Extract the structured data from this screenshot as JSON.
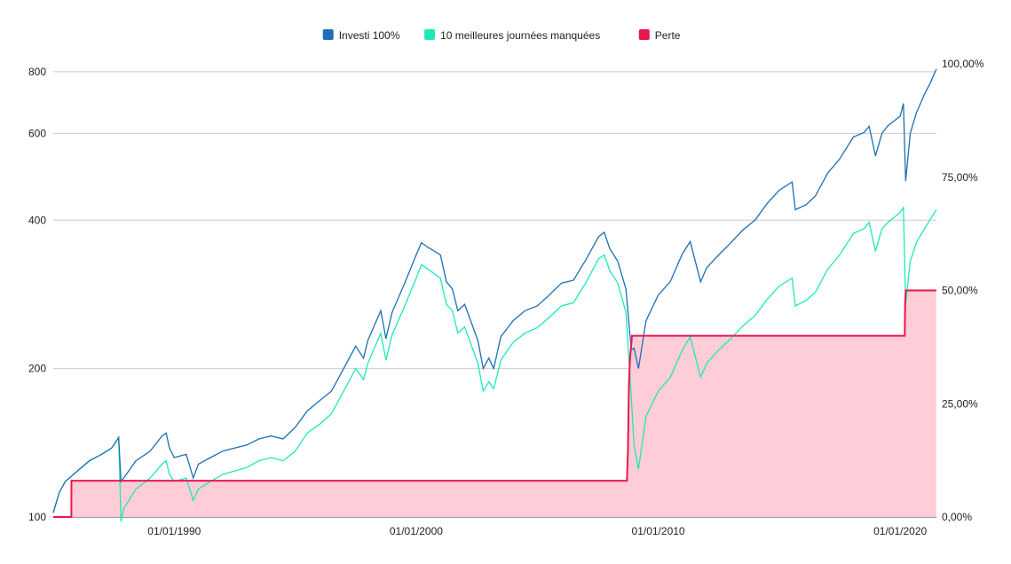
{
  "chart_data": {
    "type": "line",
    "legend": {
      "position": "top-center",
      "entries": [
        {
          "name": "Investi 100%",
          "color": "#1b6fb5"
        },
        {
          "name": "10 meilleures journées manquées",
          "color": "#1de9b6"
        },
        {
          "name": "Perte",
          "color": "#e8174f"
        }
      ]
    },
    "x_axis": {
      "type": "date",
      "range": [
        "1985-01-01",
        "2021-07-01"
      ],
      "ticks": [
        {
          "value": "1990-01-01",
          "label": "01/01/1990"
        },
        {
          "value": "2000-01-01",
          "label": "01/01/2000"
        },
        {
          "value": "2010-01-01",
          "label": "01/01/2010"
        },
        {
          "value": "2020-01-01",
          "label": "01/01/2020"
        }
      ]
    },
    "y_left": {
      "scale": "log",
      "range": [
        100,
        830
      ],
      "ticks": [
        {
          "value": 100,
          "label": "100"
        },
        {
          "value": 200,
          "label": "200"
        },
        {
          "value": 400,
          "label": "400"
        },
        {
          "value": 600,
          "label": "600"
        },
        {
          "value": 800,
          "label": "800"
        }
      ]
    },
    "y_right": {
      "scale": "linear",
      "range": [
        0,
        100
      ],
      "ticks": [
        {
          "value": 0,
          "label": "0,00%"
        },
        {
          "value": 25,
          "label": "25,00%"
        },
        {
          "value": 50,
          "label": "50,00%"
        },
        {
          "value": 75,
          "label": "75,00%"
        },
        {
          "value": 100,
          "label": "100,00%"
        }
      ]
    },
    "grid": true,
    "series": [
      {
        "name": "Investi 100%",
        "axis": "left",
        "color": "#1b6fb5",
        "x": [
          "1985-01-01",
          "1985-04-01",
          "1985-07-01",
          "1986-01-01",
          "1986-07-01",
          "1987-01-01",
          "1987-06-01",
          "1987-09-15",
          "1987-10-20",
          "1987-12-01",
          "1988-06-01",
          "1989-01-01",
          "1989-07-01",
          "1989-09-01",
          "1989-10-20",
          "1990-01-01",
          "1990-07-01",
          "1990-10-15",
          "1991-01-01",
          "1991-07-01",
          "1992-01-01",
          "1992-07-01",
          "1993-01-01",
          "1993-07-01",
          "1994-01-01",
          "1994-07-01",
          "1995-01-01",
          "1995-07-01",
          "1996-01-01",
          "1996-07-01",
          "1997-01-01",
          "1997-07-01",
          "1997-10-28",
          "1998-01-01",
          "1998-07-15",
          "1998-10-01",
          "1999-01-01",
          "1999-07-01",
          "2000-01-01",
          "2000-03-20",
          "2000-07-01",
          "2001-01-01",
          "2001-04-01",
          "2001-07-01",
          "2001-09-21",
          "2002-01-01",
          "2002-07-20",
          "2002-10-09",
          "2003-01-01",
          "2003-03-15",
          "2003-07-01",
          "2004-01-01",
          "2004-07-01",
          "2005-01-01",
          "2005-07-01",
          "2006-01-01",
          "2006-07-01",
          "2007-01-01",
          "2007-07-15",
          "2007-10-09",
          "2008-01-01",
          "2008-05-01",
          "2008-09-01",
          "2008-11-20",
          "2009-01-01",
          "2009-03-09",
          "2009-07-01",
          "2010-01-01",
          "2010-07-01",
          "2011-01-01",
          "2011-04-29",
          "2011-10-03",
          "2012-01-01",
          "2012-07-01",
          "2013-01-01",
          "2013-07-01",
          "2014-01-01",
          "2014-07-01",
          "2015-01-01",
          "2015-07-15",
          "2015-09-01",
          "2016-02-11",
          "2016-07-01",
          "2017-01-01",
          "2017-07-01",
          "2018-01-26",
          "2018-07-01",
          "2018-09-20",
          "2018-12-24",
          "2019-04-01",
          "2019-07-01",
          "2020-01-01",
          "2020-02-19",
          "2020-03-23",
          "2020-06-01",
          "2020-09-01",
          "2021-01-01",
          "2021-04-01",
          "2021-06-30"
        ],
        "values": [
          102,
          112,
          118,
          124,
          130,
          134,
          138,
          145,
          118,
          120,
          130,
          136,
          146,
          148,
          138,
          132,
          134,
          120,
          128,
          132,
          136,
          138,
          140,
          144,
          146,
          144,
          152,
          164,
          172,
          180,
          200,
          222,
          210,
          228,
          262,
          230,
          260,
          296,
          340,
          360,
          352,
          340,
          300,
          290,
          262,
          270,
          228,
          200,
          210,
          200,
          232,
          250,
          262,
          268,
          282,
          298,
          302,
          332,
          370,
          378,
          350,
          330,
          290,
          218,
          220,
          200,
          250,
          282,
          300,
          342,
          362,
          300,
          320,
          340,
          360,
          382,
          400,
          432,
          460,
          478,
          420,
          430,
          448,
          498,
          532,
          590,
          602,
          620,
          540,
          600,
          622,
          650,
          690,
          480,
          600,
          660,
          720,
          760,
          810
        ]
      },
      {
        "name": "10 meilleures journées manquées",
        "axis": "left",
        "color": "#1de9b6",
        "x": [
          "1985-01-01",
          "1985-04-01",
          "1985-07-01",
          "1986-01-01",
          "1986-07-01",
          "1987-01-01",
          "1987-06-01",
          "1987-09-15",
          "1987-10-20",
          "1987-12-01",
          "1988-06-01",
          "1989-01-01",
          "1989-07-01",
          "1989-09-01",
          "1989-10-20",
          "1990-01-01",
          "1990-07-01",
          "1990-10-15",
          "1991-01-01",
          "1991-07-01",
          "1992-01-01",
          "1992-07-01",
          "1993-01-01",
          "1993-07-01",
          "1994-01-01",
          "1994-07-01",
          "1995-01-01",
          "1995-07-01",
          "1996-01-01",
          "1996-07-01",
          "1997-01-01",
          "1997-07-01",
          "1997-10-28",
          "1998-01-01",
          "1998-07-15",
          "1998-10-01",
          "1999-01-01",
          "1999-07-01",
          "2000-01-01",
          "2000-03-20",
          "2000-07-01",
          "2001-01-01",
          "2001-04-01",
          "2001-07-01",
          "2001-09-21",
          "2002-01-01",
          "2002-07-20",
          "2002-10-09",
          "2003-01-01",
          "2003-03-15",
          "2003-07-01",
          "2004-01-01",
          "2004-07-01",
          "2005-01-01",
          "2005-07-01",
          "2006-01-01",
          "2006-07-01",
          "2007-01-01",
          "2007-07-15",
          "2007-10-09",
          "2008-01-01",
          "2008-05-01",
          "2008-09-01",
          "2008-11-20",
          "2009-01-01",
          "2009-03-09",
          "2009-07-01",
          "2010-01-01",
          "2010-07-01",
          "2011-01-01",
          "2011-04-29",
          "2011-10-03",
          "2012-01-01",
          "2012-07-01",
          "2013-01-01",
          "2013-07-01",
          "2014-01-01",
          "2014-07-01",
          "2015-01-01",
          "2015-07-15",
          "2015-09-01",
          "2016-02-11",
          "2016-07-01",
          "2017-01-01",
          "2017-07-01",
          "2018-01-26",
          "2018-07-01",
          "2018-09-20",
          "2018-12-24",
          "2019-04-01",
          "2019-07-01",
          "2020-01-01",
          "2020-02-19",
          "2020-03-23",
          "2020-06-01",
          "2020-09-01",
          "2021-01-01",
          "2021-04-01",
          "2021-06-30"
        ],
        "values": [
          102,
          112,
          118,
          124,
          130,
          134,
          138,
          145,
          98,
          104,
          114,
          120,
          128,
          130,
          122,
          118,
          120,
          108,
          114,
          118,
          122,
          124,
          126,
          130,
          132,
          130,
          136,
          148,
          154,
          162,
          180,
          200,
          190,
          205,
          236,
          208,
          234,
          266,
          305,
          325,
          318,
          305,
          270,
          262,
          236,
          243,
          205,
          180,
          188,
          182,
          208,
          226,
          236,
          242,
          254,
          268,
          272,
          298,
          334,
          340,
          316,
          298,
          260,
          175,
          140,
          125,
          160,
          180,
          192,
          218,
          232,
          192,
          205,
          218,
          230,
          244,
          256,
          276,
          294,
          305,
          268,
          275,
          286,
          318,
          340,
          376,
          384,
          396,
          346,
          384,
          396,
          415,
          424,
          270,
          330,
          360,
          384,
          402,
          420
        ]
      },
      {
        "name": "Perte",
        "axis": "right",
        "color": "#e8174f",
        "fill": "#ffcdd7",
        "x": [
          "1985-01-01",
          "1985-10-01",
          "1985-10-02",
          "2008-09-15",
          "2008-10-01",
          "2008-10-15",
          "2008-11-01",
          "2008-11-25",
          "2008-12-01",
          "2009-01-01",
          "2020-03-10",
          "2020-03-15",
          "2020-03-25",
          "2021-06-30"
        ],
        "values": [
          0,
          0,
          8,
          8,
          15,
          29,
          35,
          39,
          40,
          40,
          40,
          47,
          50,
          50
        ]
      }
    ]
  }
}
